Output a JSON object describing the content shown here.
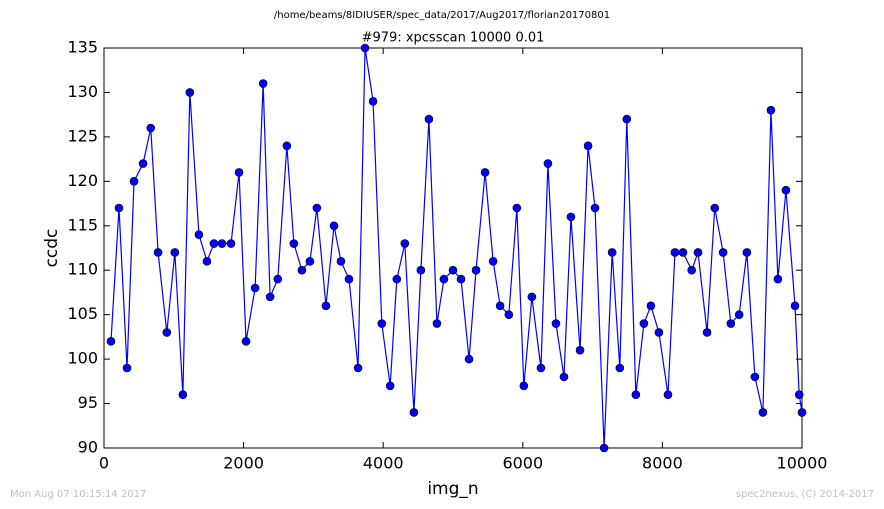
{
  "header": "/home/beams/8IDIUSER/spec_data/2017/Aug2017/florian20170801",
  "footer_left": "Mon Aug 07 10:15:14 2017",
  "footer_right": "spec2nexus, (C) 2014-2017",
  "chart_data": {
    "type": "line",
    "title": "#979: xpcsscan 10000 0.01",
    "xlabel": "img_n",
    "ylabel": "ccdc",
    "xlim": [
      0,
      10000
    ],
    "ylim": [
      90,
      135
    ],
    "xticks": [
      0,
      2000,
      4000,
      6000,
      8000,
      10000
    ],
    "yticks": [
      90,
      95,
      100,
      105,
      110,
      115,
      120,
      125,
      130,
      135
    ],
    "x": [
      100,
      215,
      330,
      430,
      560,
      670,
      775,
      900,
      1015,
      1130,
      1230,
      1360,
      1475,
      1575,
      1690,
      1820,
      1935,
      2035,
      2165,
      2280,
      2380,
      2490,
      2620,
      2720,
      2835,
      2950,
      3050,
      3180,
      3295,
      3395,
      3510,
      3640,
      3740,
      3855,
      3980,
      4100,
      4195,
      4310,
      4440,
      4540,
      4655,
      4770,
      4870,
      5000,
      5115,
      5230,
      5330,
      5460,
      5575,
      5675,
      5800,
      5915,
      6015,
      6130,
      6260,
      6360,
      6475,
      6590,
      6690,
      6820,
      6935,
      7035,
      7165,
      7280,
      7390,
      7490,
      7620,
      7735,
      7835,
      7950,
      8080,
      8180,
      8295,
      8420,
      8510,
      8640,
      8750,
      8870,
      8980,
      9100,
      9210,
      9325,
      9440,
      9555,
      9655,
      9770,
      9900,
      9960,
      10000
    ],
    "series": [
      {
        "name": "ccdc",
        "color": "#0000ff",
        "values": [
          102,
          117,
          99,
          120,
          122,
          126,
          112,
          103,
          112,
          96,
          130,
          114,
          111,
          113,
          113,
          113,
          121,
          102,
          108,
          131,
          107,
          109,
          124,
          113,
          110,
          111,
          117,
          106,
          115,
          111,
          109,
          99,
          135,
          129,
          104,
          97,
          109,
          113,
          94,
          110,
          127,
          104,
          109,
          110,
          109,
          100,
          110,
          121,
          111,
          106,
          105,
          117,
          97,
          107,
          99,
          122,
          104,
          98,
          116,
          101,
          124,
          117,
          90,
          112,
          99,
          127,
          96,
          104,
          106,
          103,
          96,
          112,
          112,
          110,
          112,
          103,
          117,
          112,
          104,
          105,
          112,
          98,
          94,
          128,
          109,
          119,
          106,
          96,
          94
        ]
      }
    ]
  }
}
